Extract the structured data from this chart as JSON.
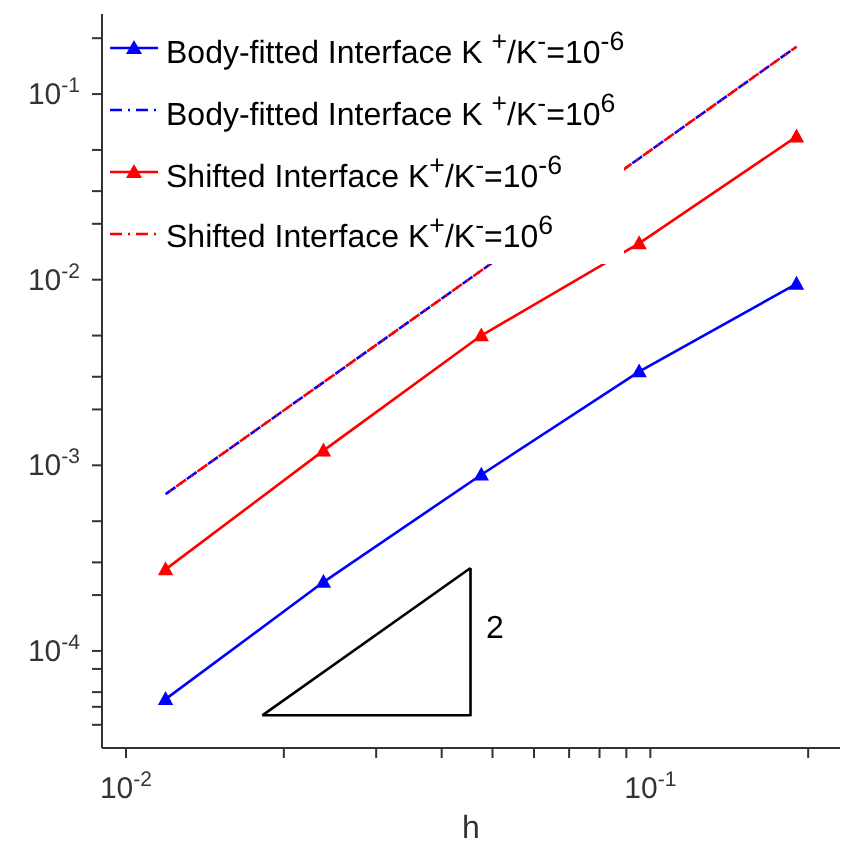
{
  "chart_data": {
    "type": "line",
    "xlabel": "h",
    "log": "xy",
    "grid": false,
    "legend": "top left",
    "xlim": [
      0.009,
      0.23
    ],
    "ylim": [
      3e-05,
      0.27
    ],
    "xticks": [
      {
        "value": 0.01,
        "label": "10$^{-2}$"
      },
      {
        "value": 0.02,
        "label": null
      },
      {
        "value": 0.03,
        "label": null
      },
      {
        "value": 0.04,
        "label": null
      },
      {
        "value": 0.05,
        "label": null
      },
      {
        "value": 0.06,
        "label": null
      },
      {
        "value": 0.07,
        "label": null
      },
      {
        "value": 0.08,
        "label": null
      },
      {
        "value": 0.09,
        "label": null
      },
      {
        "value": 0.1,
        "label": "10$^{-1}$"
      },
      {
        "value": 0.2,
        "label": null
      }
    ],
    "yticks": [
      {
        "value": 4e-05,
        "label": null
      },
      {
        "value": 5e-05,
        "label": null
      },
      {
        "value": 6e-05,
        "label": null
      },
      {
        "value": 8e-05,
        "label": null
      },
      {
        "value": 0.0001,
        "label": "10$^{-4}$"
      },
      {
        "value": 0.0002,
        "label": null
      },
      {
        "value": 0.0003,
        "label": null
      },
      {
        "value": 0.0005,
        "label": null
      },
      {
        "value": 0.001,
        "label": "10$^{-3}$"
      },
      {
        "value": 0.002,
        "label": null
      },
      {
        "value": 0.003,
        "label": null
      },
      {
        "value": 0.005,
        "label": null
      },
      {
        "value": 0.01,
        "label": "10$^{-2}$"
      },
      {
        "value": 0.02,
        "label": null
      },
      {
        "value": 0.03,
        "label": null
      },
      {
        "value": 0.05,
        "label": null
      },
      {
        "value": 0.1,
        "label": "10$^{-1}$"
      },
      {
        "value": 0.2,
        "label": null
      }
    ],
    "annotations": [
      "2"
    ],
    "series": [
      {
        "name": "Body-fitted Interface K $^{+}$/K$^{-}$=10$^{-6}$",
        "color": "#0000ff",
        "marker": "triangle",
        "line_style": "solid",
        "x": [
          0.0119,
          0.0238,
          0.0476,
          0.0952,
          0.19
        ],
        "values": [
          5.5e-05,
          0.000235,
          0.00089,
          0.0032,
          0.0095
        ]
      },
      {
        "name": "Body-fitted Interface K $^{+}$/K$^{-}$=10$^{6}$",
        "color": "#0000ff",
        "marker": "none",
        "line_style": "dashed",
        "x": [
          0.0119,
          0.0238,
          0.0476,
          0.0952,
          0.19
        ],
        "values": [
          0.0007,
          0.0028,
          0.0112,
          0.045,
          0.18
        ]
      },
      {
        "name": "Shifted Interface K$^{+}$/K$^{-}$=10$^{-6}$",
        "color": "#ff0000",
        "marker": "triangle",
        "line_style": "solid",
        "x": [
          0.0119,
          0.0238,
          0.0476,
          0.0952,
          0.19
        ],
        "values": [
          0.000275,
          0.0012,
          0.005,
          0.0157,
          0.059
        ]
      },
      {
        "name": "Shifted Interface K$^{+}$/K$^{-}$=10$^{6}$",
        "color": "#ff0000",
        "marker": "none",
        "line_style": "dashed",
        "x": [
          0.0119,
          0.0238,
          0.0476,
          0.0952,
          0.19
        ],
        "values": [
          0.0007,
          0.0028,
          0.0112,
          0.045,
          0.18
        ]
      },
      {
        "type": "line",
        "color": "#000000",
        "marker": "none",
        "line_style": "solid",
        "x": [
          0.0182,
          0.0454,
          0.0454
        ],
        "values": [
          4.5e-05,
          4.5e-05,
          0.00028
        ]
      },
      {
        "type": "line",
        "color": "#000000",
        "marker": "none",
        "line_style": "solid",
        "x": [
          0.0182,
          0.0454
        ],
        "values": [
          4.5e-05,
          0.00028
        ]
      }
    ]
  }
}
